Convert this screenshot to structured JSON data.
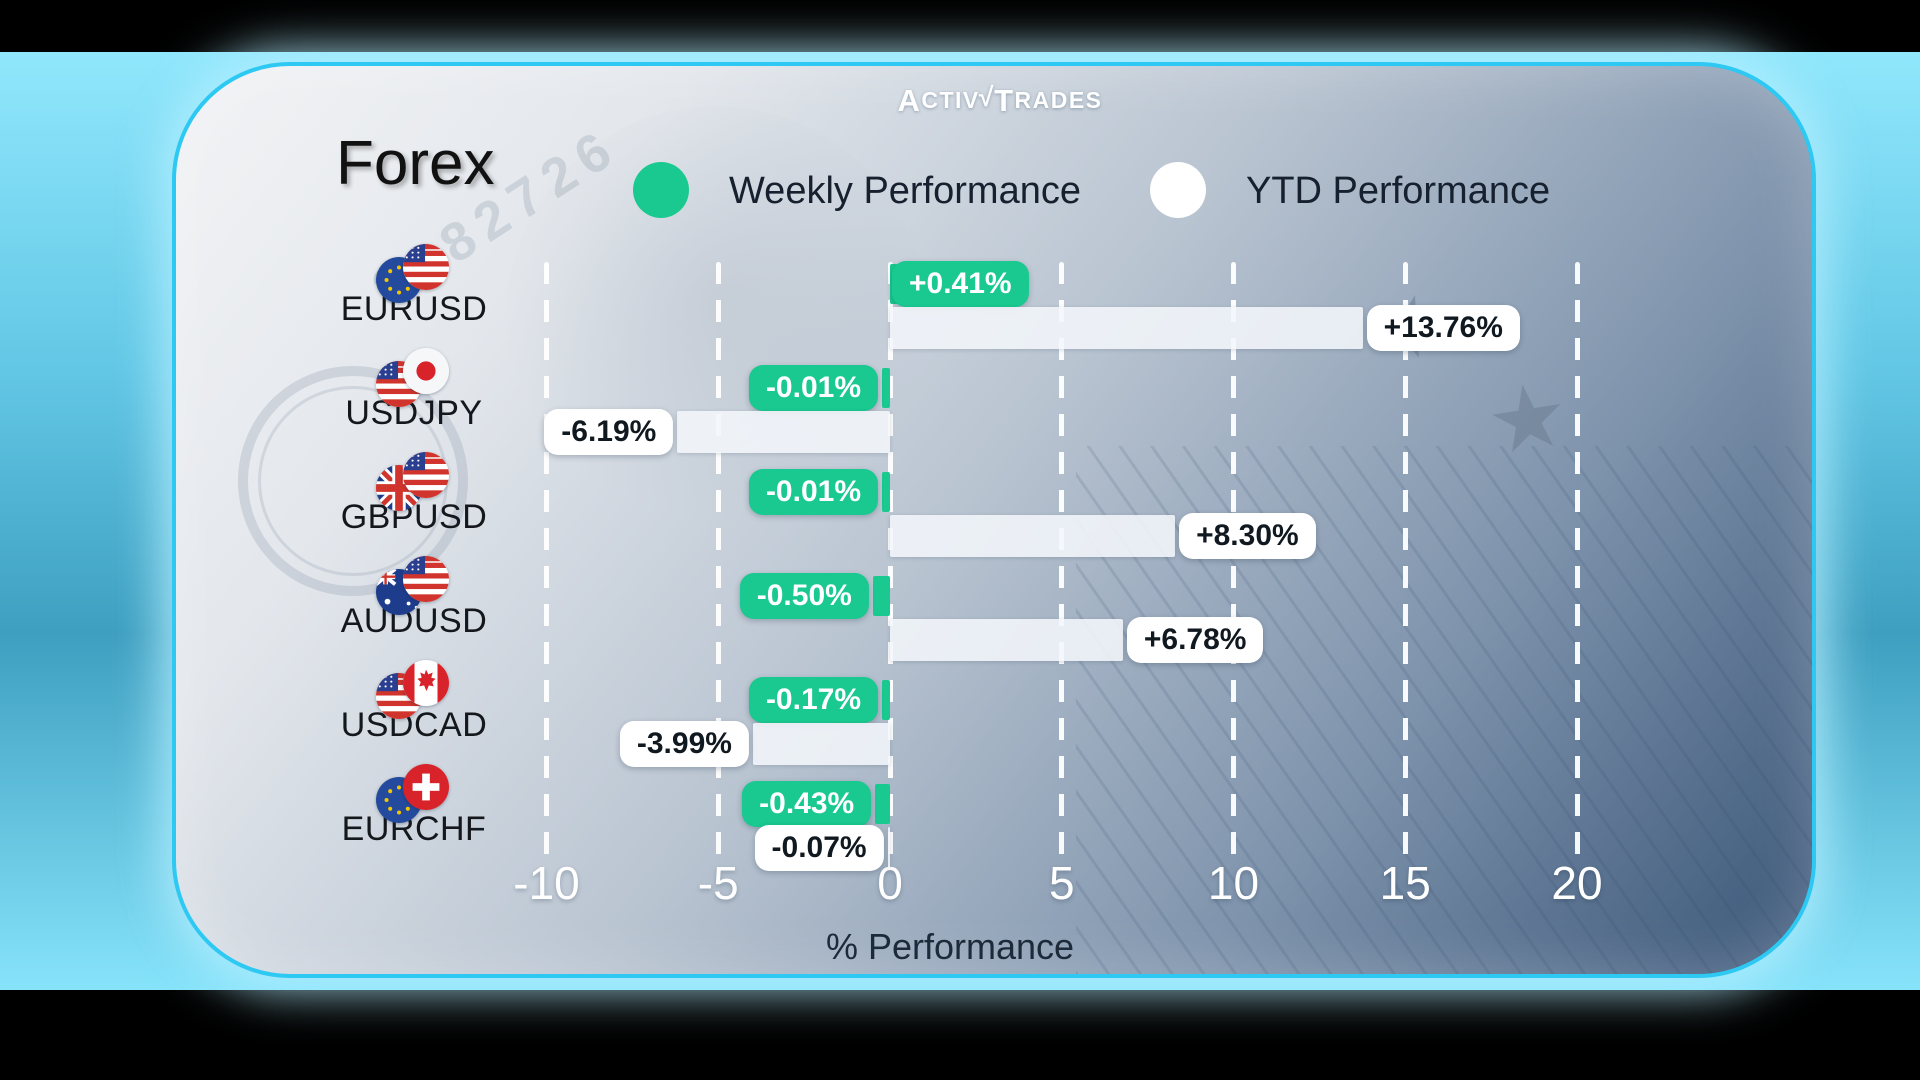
{
  "brand": {
    "name": "ActivTrades",
    "logo_a": "A",
    "logo_ctiv": "ctiv",
    "logo_check": "√",
    "logo_t": "T",
    "logo_rades": "rades"
  },
  "title": "Forex",
  "legend": {
    "weekly": {
      "label": "Weekly Performance",
      "color": "#19c98f"
    },
    "ytd": {
      "label": "YTD Performance",
      "color": "#ffffff"
    }
  },
  "axis": {
    "label": "% Performance",
    "ticks": [
      {
        "v": -10,
        "label": "-10"
      },
      {
        "v": -5,
        "label": "-5"
      },
      {
        "v": 0,
        "label": "0"
      },
      {
        "v": 5,
        "label": "5"
      },
      {
        "v": 10,
        "label": "10"
      },
      {
        "v": 15,
        "label": "15"
      },
      {
        "v": 20,
        "label": "20"
      }
    ]
  },
  "chart_data": {
    "type": "bar",
    "orientation": "horizontal",
    "title": "Forex",
    "xlabel": "% Performance",
    "xlim": [
      -12.5,
      22.5
    ],
    "grid": "dashed-vertical-white",
    "legend_position": "top",
    "categories": [
      "EURUSD",
      "USDJPY",
      "GBPUSD",
      "AUDUSD",
      "USDCAD",
      "EURCHF"
    ],
    "flags": [
      [
        "eu",
        "us"
      ],
      [
        "us",
        "jp"
      ],
      [
        "gb",
        "us"
      ],
      [
        "au",
        "us"
      ],
      [
        "us",
        "ca"
      ],
      [
        "eu",
        "ch"
      ]
    ],
    "series": [
      {
        "name": "Weekly Performance",
        "color": "#19c98f",
        "values": [
          0.41,
          -0.01,
          -0.01,
          -0.5,
          -0.17,
          -0.43
        ],
        "labels": [
          "+0.41%",
          "-0.01%",
          "-0.01%",
          "-0.50%",
          "-0.17%",
          "-0.43%"
        ]
      },
      {
        "name": "YTD Performance",
        "color": "#f2f5f9",
        "values": [
          13.76,
          -6.19,
          8.3,
          6.78,
          -3.99,
          -0.07
        ],
        "labels": [
          "+13.76%",
          "-6.19%",
          "+8.30%",
          "+6.78%",
          "-3.99%",
          "-0.07%"
        ]
      }
    ]
  },
  "colors": {
    "accent_green": "#19c98f",
    "card_border": "#2ec9f3",
    "glow_blue": "#86e3fa",
    "card_dark": "#395577",
    "text_dark": "#16202e"
  }
}
